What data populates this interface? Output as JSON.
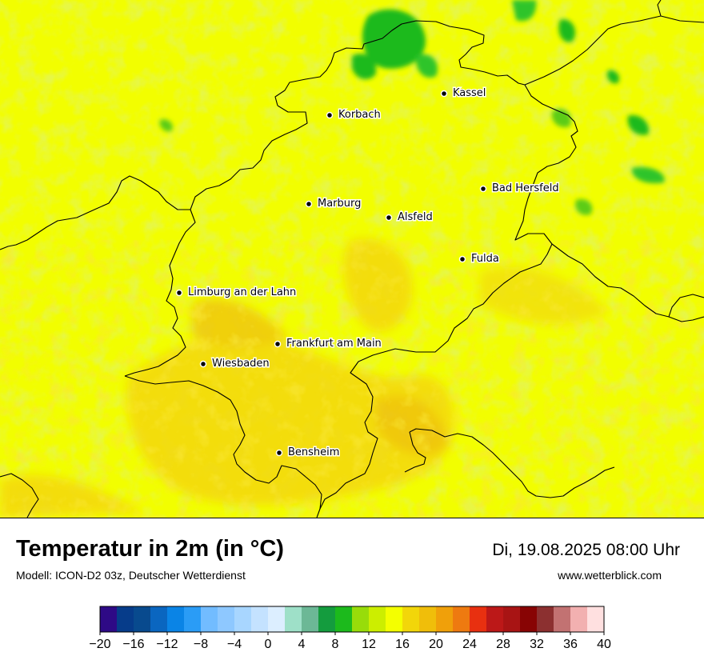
{
  "header": {
    "title": "Temperatur in 2m (in °C)",
    "model": "Modell: ICON-D2 03z, Deutscher Wetterdienst",
    "datetime": "Di, 19.08.2025 08:00 Uhr",
    "website": "www.wetterblick.com"
  },
  "cities": [
    {
      "name": "Kassel"
    },
    {
      "name": "Korbach"
    },
    {
      "name": "Bad Hersfeld"
    },
    {
      "name": "Marburg"
    },
    {
      "name": "Alsfeld"
    },
    {
      "name": "Fulda"
    },
    {
      "name": "Limburg an der Lahn"
    },
    {
      "name": "Frankfurt am Main"
    },
    {
      "name": "Wiesbaden"
    },
    {
      "name": "Bensheim"
    }
  ],
  "colorbar": {
    "min": -20,
    "max": 40,
    "step": 2,
    "tick_labels": [
      "−20",
      "−16",
      "−12",
      "−8",
      "−4",
      "0",
      "4",
      "8",
      "12",
      "16",
      "20",
      "24",
      "28",
      "32",
      "36",
      "40"
    ],
    "colors": [
      "#2e0a86",
      "#063c8a",
      "#084a8e",
      "#0a66c0",
      "#0a84e6",
      "#2a9cf6",
      "#72bcff",
      "#8ec8ff",
      "#a8d6ff",
      "#c4e2ff",
      "#dceeff",
      "#9ee0c8",
      "#6cb896",
      "#149c3e",
      "#1cba1c",
      "#98dc0a",
      "#ccee00",
      "#f4ff00",
      "#f2d60a",
      "#f0be0a",
      "#f0a00a",
      "#ee7a10",
      "#e83010",
      "#bc1818",
      "#a81414",
      "#880404",
      "#8c3030",
      "#c27272",
      "#f2b0b0",
      "#ffe0e0"
    ]
  },
  "map_colors": {
    "base": "#f2fe00",
    "light_green": "#ccee10",
    "mid_green": "#98dc0a",
    "dark_green": "#1cba1c",
    "yellow_orange": "#f4d80a",
    "orange": "#f0be0a"
  }
}
